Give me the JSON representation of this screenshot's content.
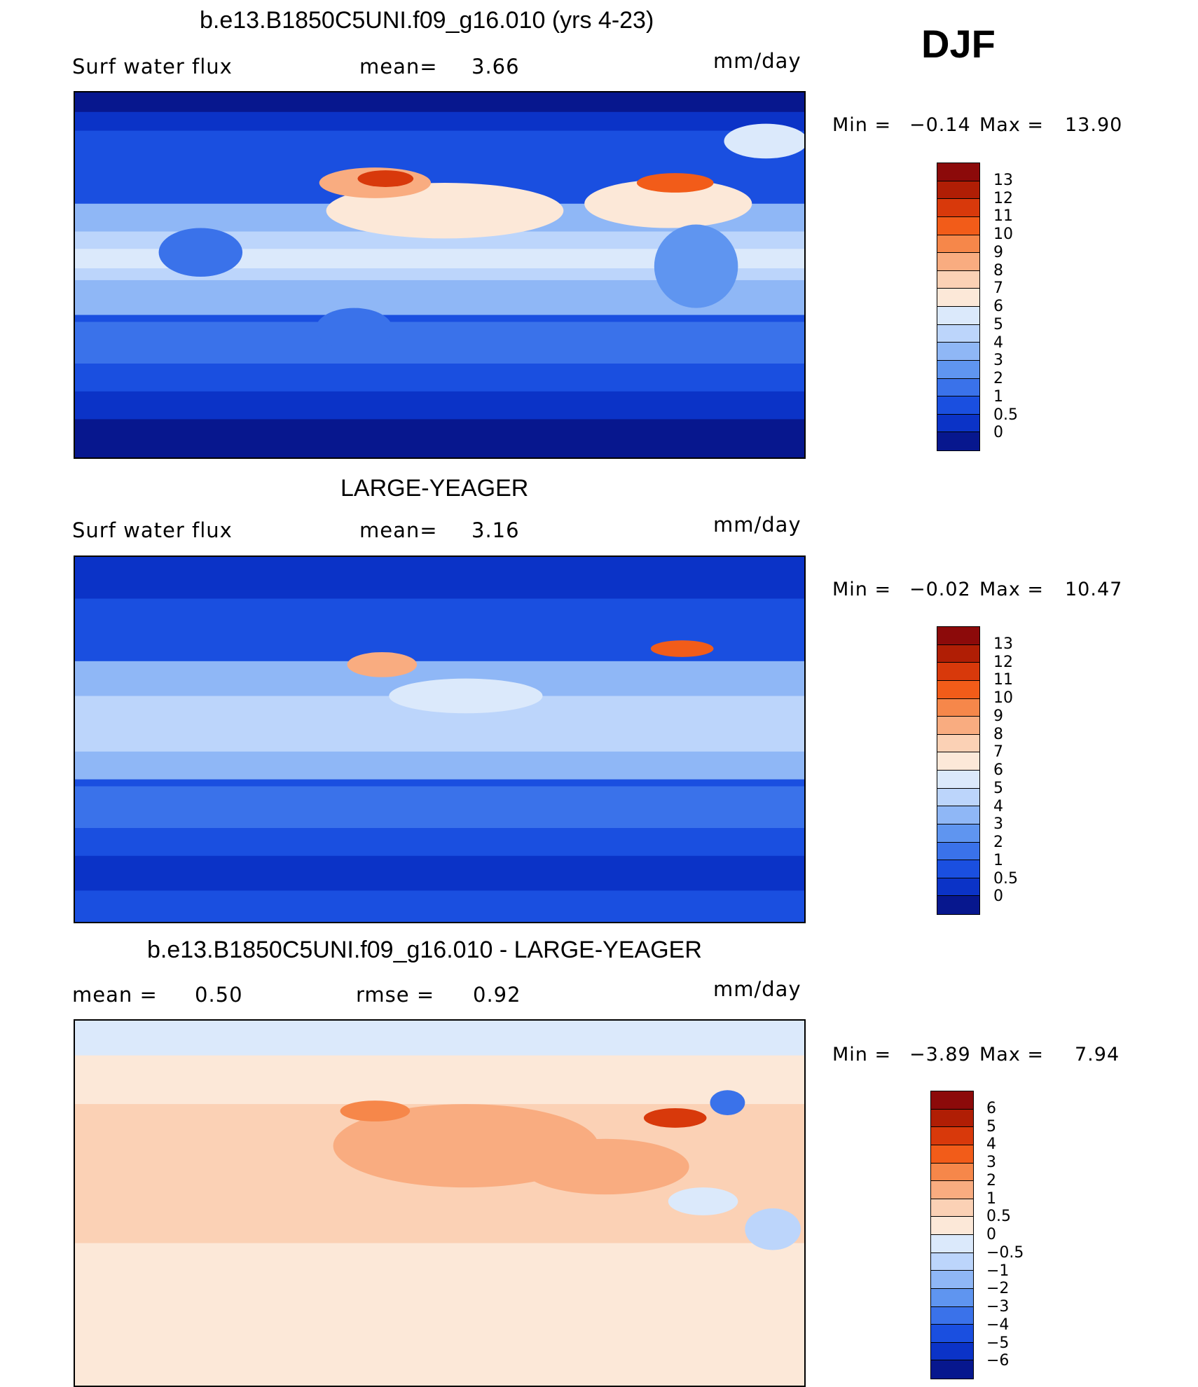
{
  "header": {
    "season": "DJF"
  },
  "panels": [
    {
      "title": "b.e13.B1850C5UNI.f09_g16.010 (yrs 4-23)",
      "left": "Surf  water  flux",
      "middle": "mean=",
      "middle_value": "3.66",
      "units": "mm/day",
      "min_label": "Min  =",
      "min_value": "−0.14",
      "max_label": "Max  =",
      "max_value": "13.90",
      "land": "filled",
      "colorbar": {
        "colors": [
          "#8c0a0a",
          "#b01e05",
          "#d8390b",
          "#f25c19",
          "#f6874a",
          "#f9ac80",
          "#fbd1b5",
          "#fce8d8",
          "#dbe9fb",
          "#bcd5fb",
          "#8fb7f6",
          "#5f95f0",
          "#3a72ea",
          "#1a4fe0",
          "#0b33c7",
          "#07178e"
        ],
        "labels": [
          "13",
          "12",
          "11",
          "10",
          "9",
          "8",
          "7",
          "6",
          "5",
          "4",
          "3",
          "2",
          "1",
          "0.5",
          "0"
        ]
      }
    },
    {
      "title": "LARGE-YEAGER",
      "left": "Surf  water  flux",
      "middle": "mean=",
      "middle_value": "3.16",
      "units": "mm/day",
      "min_label": "Min  =",
      "min_value": "−0.02",
      "max_label": "Max  =",
      "max_value": "10.47",
      "land": "white",
      "colorbar": {
        "colors": [
          "#8c0a0a",
          "#b01e05",
          "#d8390b",
          "#f25c19",
          "#f6874a",
          "#f9ac80",
          "#fbd1b5",
          "#fce8d8",
          "#dbe9fb",
          "#bcd5fb",
          "#8fb7f6",
          "#5f95f0",
          "#3a72ea",
          "#1a4fe0",
          "#0b33c7",
          "#07178e"
        ],
        "labels": [
          "13",
          "12",
          "11",
          "10",
          "9",
          "8",
          "7",
          "6",
          "5",
          "4",
          "3",
          "2",
          "1",
          "0.5",
          "0"
        ]
      }
    },
    {
      "title": "b.e13.B1850C5UNI.f09_g16.010 - LARGE-YEAGER",
      "left": "mean  =",
      "left_value": "0.50",
      "middle": "rmse  =",
      "middle_value": "0.92",
      "units": "mm/day",
      "min_label": "Min  =",
      "min_value": "−3.89",
      "max_label": "Max  =",
      "max_value": "7.94",
      "land": "white",
      "colorbar": {
        "colors": [
          "#8c0a0a",
          "#b01e05",
          "#d8390b",
          "#f25c19",
          "#f6874a",
          "#f9ac80",
          "#fbd1b5",
          "#fce8d8",
          "#dbe9fb",
          "#bcd5fb",
          "#8fb7f6",
          "#5f95f0",
          "#3a72ea",
          "#1a4fe0",
          "#0b33c7",
          "#07178e"
        ],
        "labels": [
          "6",
          "5",
          "4",
          "3",
          "2",
          "1",
          "0.5",
          "0",
          "−0.5",
          "−1",
          "−2",
          "−3",
          "−4",
          "−5",
          "−6"
        ]
      }
    }
  ]
}
